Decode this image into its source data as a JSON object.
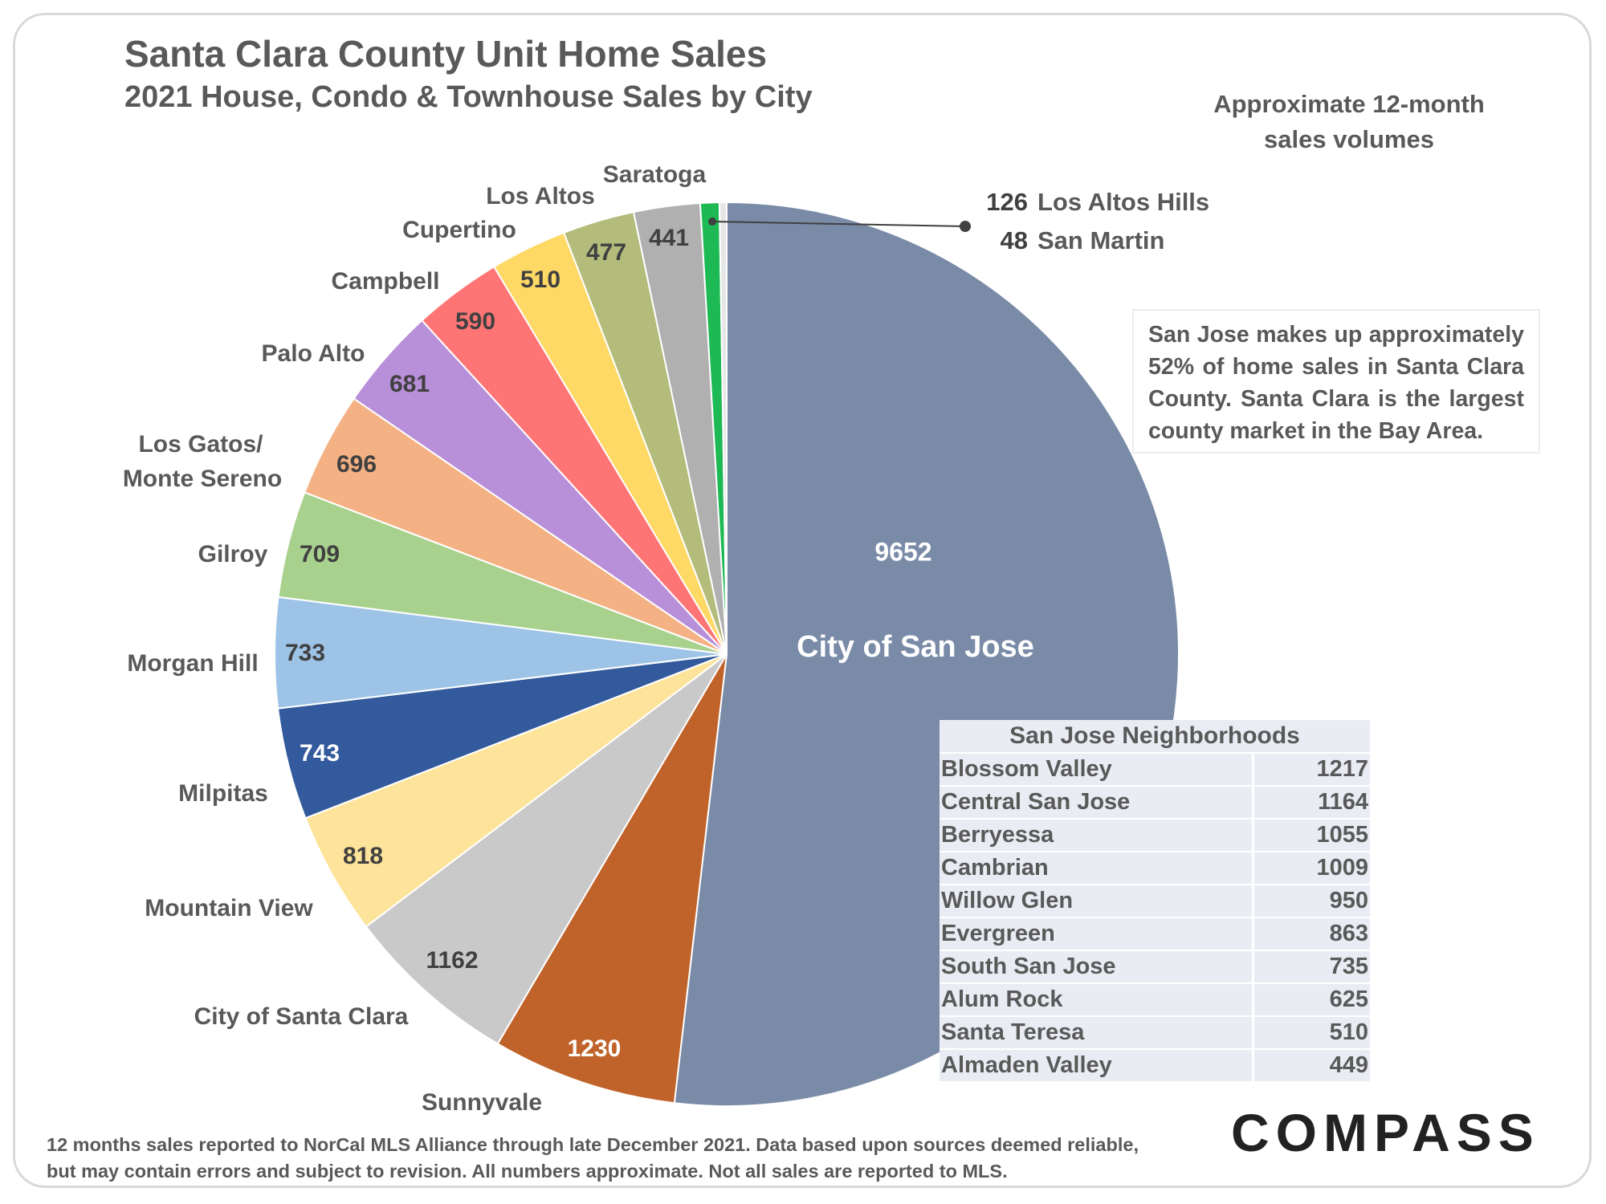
{
  "title": "Santa Clara County Unit Home Sales",
  "subtitle": "2021 House, Condo & Townhouse Sales by City",
  "approx_note": "Approximate 12-month sales volumes",
  "sj_note": "San Jose makes up approximately 52% of home sales in Santa Clara County. Santa Clara is the largest county market in the Bay Area.",
  "footnote": "12 months sales reported to NorCal MLS Alliance through late December 2021. Data based upon sources deemed reliable, but may contain errors and subject to revision. All numbers approximate. Not all sales are reported to MLS.",
  "logo": "COMPASS",
  "chart_data": {
    "type": "pie",
    "title": "Santa Clara County Unit Home Sales",
    "subtitle": "2021 House, Condo & Townhouse Sales by City",
    "slices": [
      {
        "label": "City of San Jose",
        "value": 9652,
        "color": "#7a8ba8"
      },
      {
        "label": "Sunnyvale",
        "value": 1230,
        "color": "#c0632a"
      },
      {
        "label": "City of Santa Clara",
        "value": 1162,
        "color": "#c9c9c9"
      },
      {
        "label": "Mountain View",
        "value": 818,
        "color": "#fde49a"
      },
      {
        "label": "Milpitas",
        "value": 743,
        "color": "#335a9c"
      },
      {
        "label": "Morgan Hill",
        "value": 733,
        "color": "#9dc3e6"
      },
      {
        "label": "Gilroy",
        "value": 709,
        "color": "#a9d18e"
      },
      {
        "label": "Los Gatos/ Monte Sereno",
        "value": 696,
        "color": "#f4b183"
      },
      {
        "label": "Palo Alto",
        "value": 681,
        "color": "#b88fd9"
      },
      {
        "label": "Campbell",
        "value": 590,
        "color": "#ff7575"
      },
      {
        "label": "Cupertino",
        "value": 510,
        "color": "#ffd966"
      },
      {
        "label": "Los Altos",
        "value": 477,
        "color": "#b4bc7c"
      },
      {
        "label": "Saratoga",
        "value": 441,
        "color": "#b0b0b0"
      },
      {
        "label": "Los Altos Hills",
        "value": 126,
        "color": "#1db954"
      },
      {
        "label": "San Martin",
        "value": 48,
        "color": "#e6e6e6"
      }
    ]
  },
  "neighborhoods": {
    "header": "San Jose Neighborhoods",
    "rows": [
      {
        "name": "Blossom Valley",
        "value": "1217"
      },
      {
        "name": "Central San Jose",
        "value": "1164"
      },
      {
        "name": "Berryessa",
        "value": "1055"
      },
      {
        "name": "Cambrian",
        "value": "1009"
      },
      {
        "name": "Willow Glen",
        "value": "950"
      },
      {
        "name": "Evergreen",
        "value": "863"
      },
      {
        "name": "South San Jose",
        "value": "735"
      },
      {
        "name": "Alum Rock",
        "value": "625"
      },
      {
        "name": "Santa Teresa",
        "value": "510"
      },
      {
        "name": "Almaden Valley",
        "value": "449"
      }
    ]
  }
}
